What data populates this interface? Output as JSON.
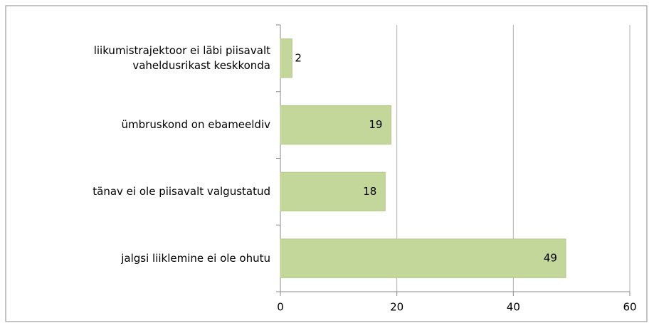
{
  "chart_data": {
    "type": "bar",
    "orientation": "horizontal",
    "categories": [
      "liikumistrajektoor ei läbi piisavalt vaheldusrikast keskkonda",
      "ümbruskond on ebameeldiv",
      "tänav ei ole piisavalt valgustatud",
      "jalgsi liiklemine ei ole ohutu"
    ],
    "values": [
      2,
      19,
      18,
      49
    ],
    "color": "#c4d79b",
    "xlim": [
      0,
      60
    ],
    "xticks": [
      0,
      20,
      40,
      60
    ],
    "grid": true
  }
}
